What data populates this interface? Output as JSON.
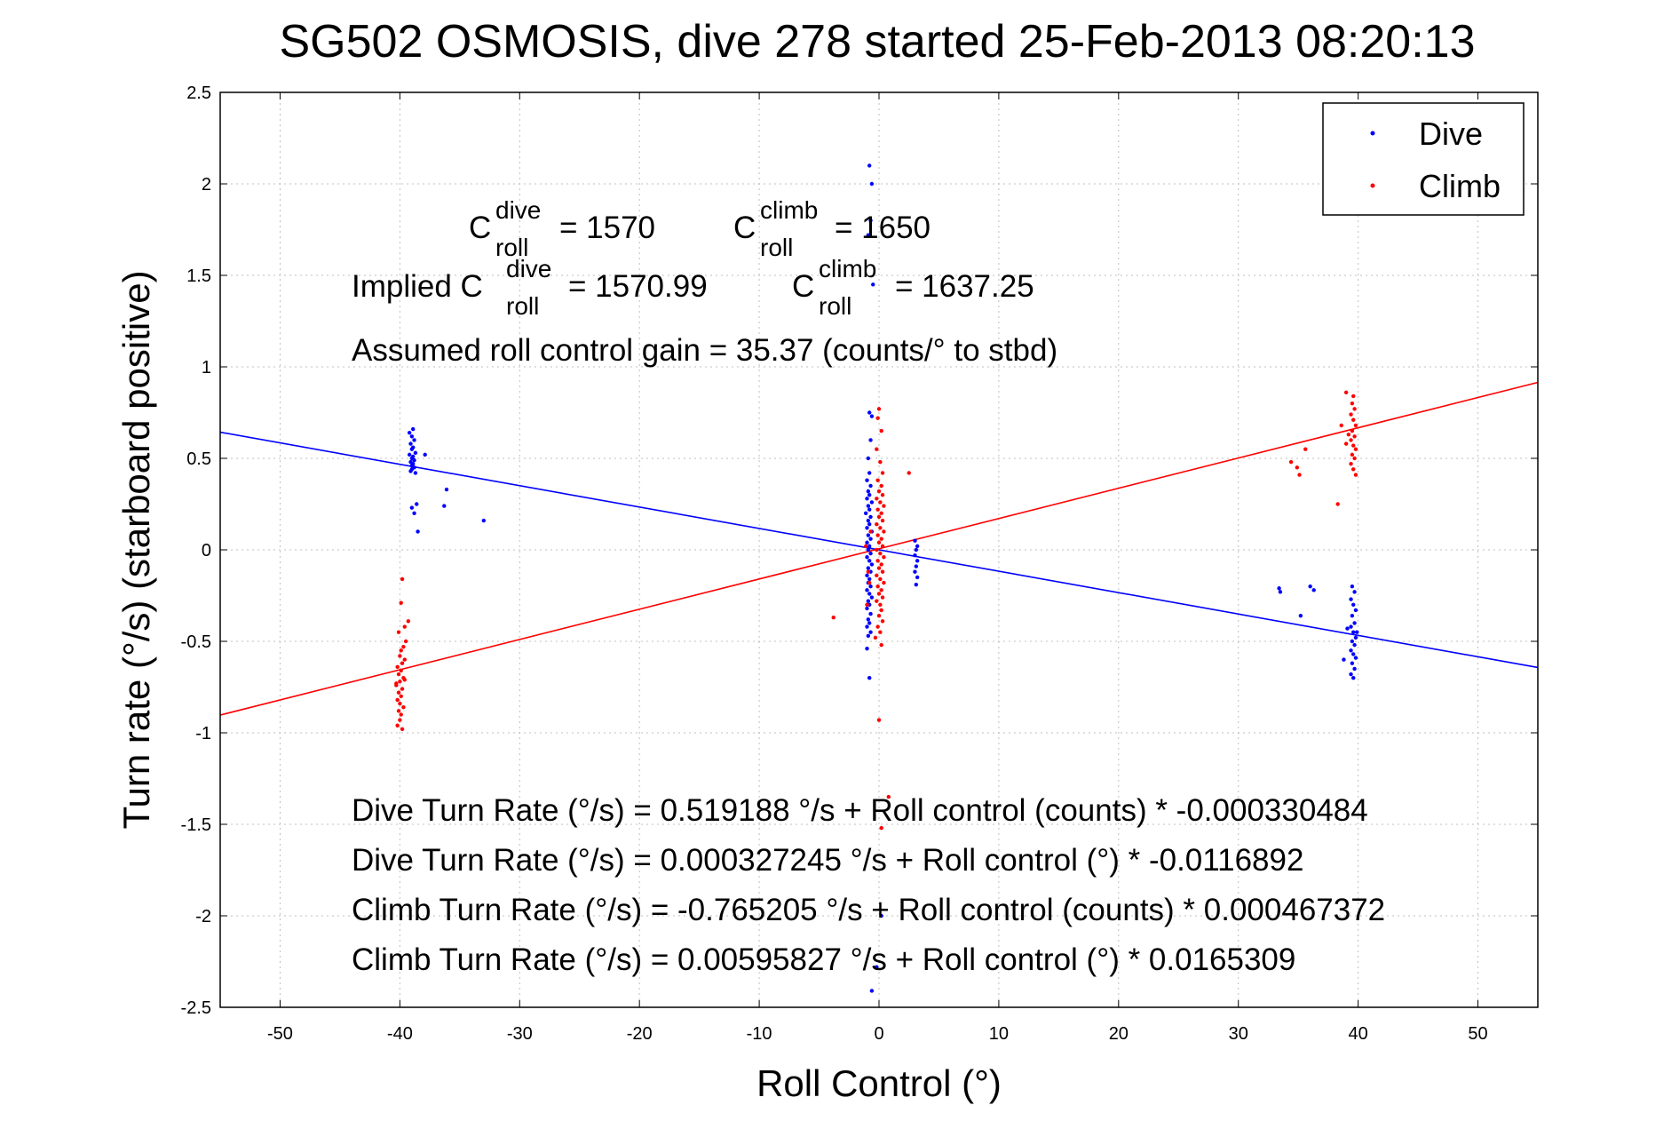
{
  "chart_data": {
    "type": "scatter",
    "title": "SG502 OSMOSIS, dive 278 started 25-Feb-2013 08:20:13",
    "xlabel": "Roll Control (°)",
    "ylabel": "Turn rate (°/s) (starboard positive)",
    "xlim": [
      -55,
      55
    ],
    "ylim": [
      -2.5,
      2.5
    ],
    "xticks": [
      -50,
      -40,
      -30,
      -20,
      -10,
      0,
      10,
      20,
      30,
      40,
      50
    ],
    "yticks": [
      2.5,
      2,
      1.5,
      1,
      0.5,
      0,
      -0.5,
      -1,
      -1.5,
      -2,
      -2.5
    ],
    "xtick_labels": [
      "-50",
      "-40",
      "-30",
      "-20",
      "-10",
      "0",
      "10",
      "20",
      "30",
      "40",
      "50"
    ],
    "ytick_labels": [
      "2.5",
      "2",
      "1.5",
      "1",
      "0.5",
      "0",
      "-0.5",
      "-1",
      "-1.5",
      "-2",
      "-2.5"
    ],
    "grid": true,
    "legend_position": "top-right",
    "series": [
      {
        "name": "Dive",
        "color": "#0000ff",
        "marker": "dot",
        "points": [
          [
            -39.2,
            0.64
          ],
          [
            -39.0,
            0.62
          ],
          [
            -38.8,
            0.6
          ],
          [
            -39.1,
            0.58
          ],
          [
            -38.9,
            0.56
          ],
          [
            -39.0,
            0.55
          ],
          [
            -38.7,
            0.53
          ],
          [
            -39.2,
            0.52
          ],
          [
            -38.9,
            0.51
          ],
          [
            -39.0,
            0.5
          ],
          [
            -38.8,
            0.49
          ],
          [
            -39.1,
            0.48
          ],
          [
            -38.9,
            0.47
          ],
          [
            -39.0,
            0.46
          ],
          [
            -38.8,
            0.45
          ],
          [
            -39.0,
            0.44
          ],
          [
            -39.1,
            0.43
          ],
          [
            -38.7,
            0.42
          ],
          [
            -37.9,
            0.52
          ],
          [
            -36.1,
            0.33
          ],
          [
            -38.6,
            0.25
          ],
          [
            -39.0,
            0.23
          ],
          [
            -38.8,
            0.2
          ],
          [
            -36.3,
            0.24
          ],
          [
            -33.0,
            0.16
          ],
          [
            -38.5,
            0.1
          ],
          [
            -38.9,
            0.66
          ],
          [
            -0.8,
            2.1
          ],
          [
            -0.6,
            2.0
          ],
          [
            -0.7,
            1.8
          ],
          [
            -0.9,
            1.72
          ],
          [
            -0.5,
            1.45
          ],
          [
            -0.8,
            0.75
          ],
          [
            -0.6,
            0.73
          ],
          [
            -0.7,
            0.6
          ],
          [
            -0.9,
            0.5
          ],
          [
            -0.8,
            0.42
          ],
          [
            -1.0,
            0.38
          ],
          [
            -0.7,
            0.35
          ],
          [
            -0.9,
            0.32
          ],
          [
            -0.8,
            0.3
          ],
          [
            -1.0,
            0.28
          ],
          [
            -0.6,
            0.26
          ],
          [
            -0.9,
            0.24
          ],
          [
            -0.8,
            0.22
          ],
          [
            -1.1,
            0.2
          ],
          [
            -0.7,
            0.18
          ],
          [
            -0.9,
            0.16
          ],
          [
            -0.8,
            0.14
          ],
          [
            -1.0,
            0.12
          ],
          [
            -0.6,
            0.1
          ],
          [
            -0.9,
            0.08
          ],
          [
            -0.7,
            0.06
          ],
          [
            -1.0,
            0.04
          ],
          [
            -0.8,
            0.02
          ],
          [
            -0.9,
            0.0
          ],
          [
            -0.7,
            -0.02
          ],
          [
            -1.0,
            -0.04
          ],
          [
            -0.8,
            -0.06
          ],
          [
            -0.6,
            -0.08
          ],
          [
            -0.9,
            -0.1
          ],
          [
            -0.7,
            -0.12
          ],
          [
            -1.0,
            -0.14
          ],
          [
            -0.8,
            -0.16
          ],
          [
            -0.9,
            -0.18
          ],
          [
            -0.7,
            -0.2
          ],
          [
            -1.0,
            -0.22
          ],
          [
            -0.8,
            -0.24
          ],
          [
            -0.6,
            -0.26
          ],
          [
            -0.9,
            -0.28
          ],
          [
            -0.8,
            -0.3
          ],
          [
            -1.0,
            -0.32
          ],
          [
            -0.7,
            -0.35
          ],
          [
            -0.9,
            -0.38
          ],
          [
            -0.8,
            -0.4
          ],
          [
            -1.0,
            -0.42
          ],
          [
            -0.7,
            -0.45
          ],
          [
            -0.9,
            -0.47
          ],
          [
            -1.0,
            -0.54
          ],
          [
            -0.8,
            -0.7
          ],
          [
            3.0,
            0.05
          ],
          [
            3.2,
            0.02
          ],
          [
            3.1,
            -0.0
          ],
          [
            3.0,
            -0.03
          ],
          [
            3.2,
            -0.06
          ],
          [
            3.1,
            -0.09
          ],
          [
            3.0,
            -0.12
          ],
          [
            3.2,
            -0.15
          ],
          [
            3.1,
            -0.19
          ],
          [
            33.4,
            -0.21
          ],
          [
            33.5,
            -0.23
          ],
          [
            36.0,
            -0.2
          ],
          [
            36.3,
            -0.22
          ],
          [
            35.2,
            -0.36
          ],
          [
            39.5,
            -0.2
          ],
          [
            39.7,
            -0.23
          ],
          [
            39.4,
            -0.27
          ],
          [
            39.6,
            -0.3
          ],
          [
            39.8,
            -0.33
          ],
          [
            39.5,
            -0.36
          ],
          [
            39.7,
            -0.4
          ],
          [
            39.4,
            -0.42
          ],
          [
            39.6,
            -0.45
          ],
          [
            39.8,
            -0.48
          ],
          [
            39.5,
            -0.5
          ],
          [
            39.7,
            -0.52
          ],
          [
            39.4,
            -0.55
          ],
          [
            39.6,
            -0.57
          ],
          [
            39.8,
            -0.59
          ],
          [
            39.5,
            -0.62
          ],
          [
            39.7,
            -0.65
          ],
          [
            39.4,
            -0.68
          ],
          [
            39.6,
            -0.7
          ],
          [
            39.9,
            -0.45
          ],
          [
            39.1,
            -0.43
          ],
          [
            38.8,
            -0.6
          ],
          [
            0.2,
            -2.0
          ],
          [
            -0.2,
            -2.28
          ],
          [
            -0.6,
            -2.41
          ]
        ],
        "fit_line": {
          "x": [
            -55,
            55
          ],
          "y": [
            0.643,
            -0.643
          ]
        }
      },
      {
        "name": "Climb",
        "color": "#ff0000",
        "marker": "dot",
        "points": [
          [
            -39.8,
            -0.16
          ],
          [
            -39.9,
            -0.29
          ],
          [
            -39.3,
            -0.39
          ],
          [
            -39.6,
            -0.42
          ],
          [
            -40.1,
            -0.45
          ],
          [
            -39.5,
            -0.5
          ],
          [
            -39.7,
            -0.53
          ],
          [
            -39.9,
            -0.55
          ],
          [
            -40.0,
            -0.58
          ],
          [
            -39.6,
            -0.6
          ],
          [
            -39.8,
            -0.62
          ],
          [
            -40.2,
            -0.64
          ],
          [
            -39.9,
            -0.66
          ],
          [
            -40.1,
            -0.68
          ],
          [
            -39.7,
            -0.7
          ],
          [
            -40.0,
            -0.72
          ],
          [
            -40.3,
            -0.74
          ],
          [
            -39.8,
            -0.76
          ],
          [
            -40.1,
            -0.78
          ],
          [
            -39.9,
            -0.8
          ],
          [
            -40.2,
            -0.82
          ],
          [
            -40.0,
            -0.84
          ],
          [
            -39.7,
            -0.86
          ],
          [
            -40.1,
            -0.88
          ],
          [
            -39.9,
            -0.9
          ],
          [
            -40.0,
            -0.93
          ],
          [
            -40.2,
            -0.96
          ],
          [
            -39.8,
            -0.98
          ],
          [
            -40.3,
            -0.73
          ],
          [
            -39.6,
            -0.71
          ],
          [
            0.0,
            0.77
          ],
          [
            -0.1,
            0.72
          ],
          [
            0.2,
            0.65
          ],
          [
            -0.2,
            0.55
          ],
          [
            0.1,
            0.48
          ],
          [
            0.3,
            0.42
          ],
          [
            -0.1,
            0.38
          ],
          [
            0.2,
            0.35
          ],
          [
            0.0,
            0.32
          ],
          [
            0.3,
            0.3
          ],
          [
            -0.2,
            0.28
          ],
          [
            0.1,
            0.26
          ],
          [
            0.4,
            0.24
          ],
          [
            -0.1,
            0.22
          ],
          [
            0.2,
            0.2
          ],
          [
            0.0,
            0.18
          ],
          [
            0.3,
            0.16
          ],
          [
            -0.2,
            0.14
          ],
          [
            0.1,
            0.12
          ],
          [
            0.4,
            0.1
          ],
          [
            -0.1,
            0.08
          ],
          [
            0.2,
            0.06
          ],
          [
            0.0,
            0.04
          ],
          [
            0.3,
            0.02
          ],
          [
            -0.2,
            0.0
          ],
          [
            0.1,
            -0.02
          ],
          [
            0.4,
            -0.04
          ],
          [
            -0.1,
            -0.06
          ],
          [
            0.2,
            -0.08
          ],
          [
            0.0,
            -0.1
          ],
          [
            0.3,
            -0.12
          ],
          [
            -0.2,
            -0.14
          ],
          [
            0.1,
            -0.16
          ],
          [
            0.4,
            -0.18
          ],
          [
            -0.1,
            -0.2
          ],
          [
            0.2,
            -0.22
          ],
          [
            0.0,
            -0.24
          ],
          [
            0.3,
            -0.26
          ],
          [
            -0.2,
            -0.28
          ],
          [
            0.1,
            -0.3
          ],
          [
            0.2,
            -0.33
          ],
          [
            0.0,
            -0.36
          ],
          [
            0.3,
            -0.39
          ],
          [
            -0.1,
            -0.42
          ],
          [
            0.1,
            -0.45
          ],
          [
            -0.3,
            -0.48
          ],
          [
            0.2,
            -0.52
          ],
          [
            -1.0,
            -0.3
          ],
          [
            -0.8,
            -0.18
          ],
          [
            -0.7,
            0.1
          ],
          [
            -1.1,
            0.02
          ],
          [
            -0.9,
            -0.12
          ],
          [
            2.5,
            0.42
          ],
          [
            -3.8,
            -0.37
          ],
          [
            0.0,
            -0.93
          ],
          [
            0.8,
            -1.35
          ],
          [
            0.2,
            -1.52
          ],
          [
            34.4,
            0.48
          ],
          [
            34.9,
            0.45
          ],
          [
            35.1,
            0.41
          ],
          [
            35.6,
            0.55
          ],
          [
            38.3,
            0.25
          ],
          [
            38.6,
            0.68
          ],
          [
            39.0,
            0.86
          ],
          [
            39.6,
            0.84
          ],
          [
            39.5,
            0.8
          ],
          [
            39.7,
            0.77
          ],
          [
            39.4,
            0.74
          ],
          [
            39.6,
            0.71
          ],
          [
            39.8,
            0.68
          ],
          [
            39.5,
            0.65
          ],
          [
            39.7,
            0.62
          ],
          [
            39.4,
            0.6
          ],
          [
            39.6,
            0.57
          ],
          [
            39.8,
            0.55
          ],
          [
            39.5,
            0.52
          ],
          [
            39.7,
            0.5
          ],
          [
            39.4,
            0.47
          ],
          [
            39.6,
            0.44
          ],
          [
            39.8,
            0.41
          ],
          [
            39.2,
            0.63
          ],
          [
            39.0,
            0.58
          ]
        ],
        "fit_line": {
          "x": [
            -55,
            55
          ],
          "y": [
            -0.903,
            0.915
          ]
        }
      }
    ],
    "annotations": {
      "c_roll_dive": {
        "base": "C",
        "sup": "dive",
        "sub": "roll",
        "value": "= 1570"
      },
      "c_roll_climb": {
        "base": "C",
        "sup": "climb",
        "sub": "roll",
        "value": "= 1650"
      },
      "implied_prefix": "Implied C",
      "implied_dive_sup": "dive",
      "implied_dive_sub": "roll",
      "implied_dive_value": "= 1570.99",
      "implied_climb_base": "C",
      "implied_climb_sup": "climb",
      "implied_climb_sub": "roll",
      "implied_climb_value": "= 1637.25",
      "gain": "Assumed roll control gain = 35.37 (counts/° to stbd)",
      "fit_lines": [
        "Dive Turn Rate (°/s) = 0.519188 °/s + Roll control (counts) * -0.000330484",
        "Dive Turn Rate (°/s) = 0.000327245 °/s + Roll control (°) * -0.0116892",
        "Climb Turn Rate (°/s) = -0.765205 °/s + Roll control (counts) * 0.000467372",
        "Climb Turn Rate (°/s) = 0.00595827 °/s + Roll control (°) * 0.0165309"
      ]
    }
  }
}
